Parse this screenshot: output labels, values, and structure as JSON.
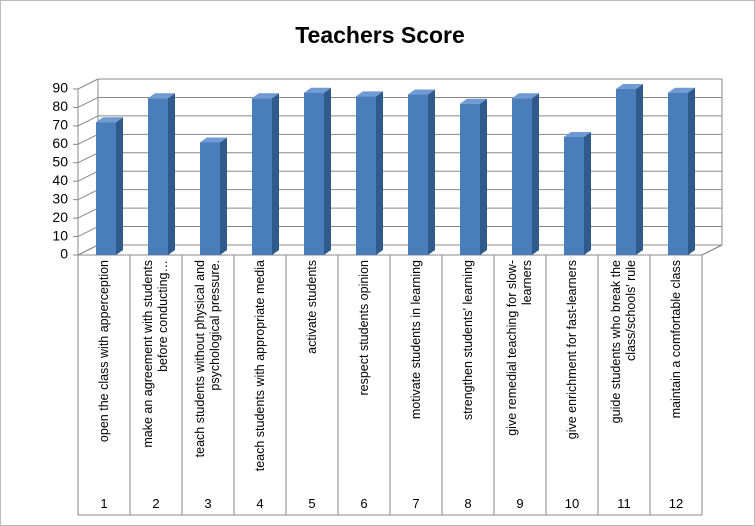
{
  "chart_data": {
    "type": "bar",
    "title": "Teachers Score",
    "categories": [
      "1",
      "2",
      "3",
      "4",
      "5",
      "6",
      "7",
      "8",
      "9",
      "10",
      "11",
      "12"
    ],
    "category_labels": [
      "open the class with apperception",
      "make an agreement with students before conducting…",
      "teach students without physical and psychological pressure.",
      "teach students with appropriate media",
      "activate students",
      "respect students opinion",
      "motivate students in learning",
      "strengthen students' learning",
      "give remedial teaching for slow-learners",
      "give enrichment for fast-learners",
      "guide students who break the class/schools' rule",
      "maintain a comfortable class"
    ],
    "values": [
      72,
      85,
      61,
      85,
      88,
      86,
      87,
      82,
      85,
      64,
      90,
      88
    ],
    "color": "#4a7ebb",
    "ylim": [
      0,
      90
    ],
    "yticks": [
      0,
      10,
      20,
      30,
      40,
      50,
      60,
      70,
      80,
      90
    ],
    "grid": true
  }
}
